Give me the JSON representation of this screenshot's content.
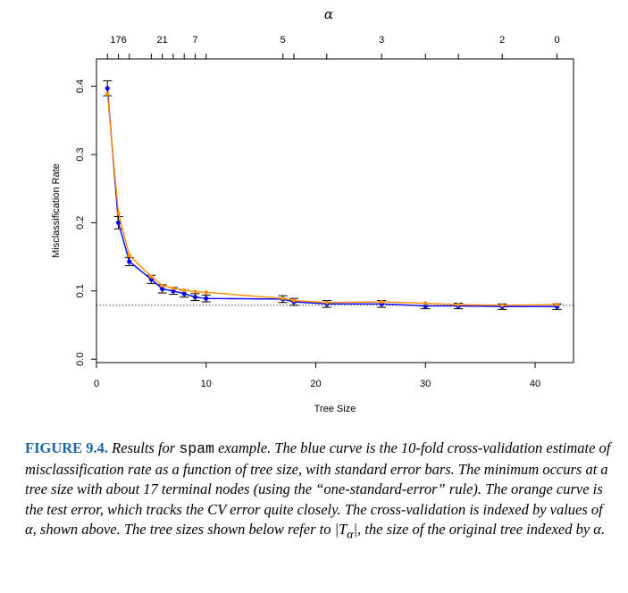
{
  "chart_data": {
    "type": "line",
    "title": "",
    "xlabel": "Tree Size",
    "ylabel": "Misclassification Rate",
    "top_axis_label": "α",
    "xlim": [
      0,
      43.5
    ],
    "ylim": [
      -0.005,
      0.44
    ],
    "x_ticks": [
      0,
      10,
      20,
      30,
      40
    ],
    "y_ticks": [
      0.0,
      0.1,
      0.2,
      0.3,
      0.4
    ],
    "top_ticks_x": [
      1,
      2,
      3,
      5,
      6,
      7,
      8,
      9,
      10,
      17,
      18,
      21,
      26,
      30,
      33,
      37,
      42
    ],
    "top_tick_labels": [
      {
        "x": 2,
        "label": "176"
      },
      {
        "x": 6,
        "label": "21"
      },
      {
        "x": 9,
        "label": "7"
      },
      {
        "x": 17,
        "label": "5"
      },
      {
        "x": 26,
        "label": "3"
      },
      {
        "x": 37,
        "label": "2"
      },
      {
        "x": 42,
        "label": "0"
      }
    ],
    "reference_line": {
      "y": 0.079,
      "style": "dotted"
    },
    "series": [
      {
        "name": "",
        "color": "#0000ff",
        "x": [
          1,
          2,
          3,
          5,
          6,
          7,
          8,
          9,
          10,
          17,
          18,
          21,
          26,
          30,
          33,
          37,
          42
        ],
        "y": [
          0.397,
          0.2,
          0.143,
          0.117,
          0.103,
          0.1,
          0.096,
          0.091,
          0.089,
          0.088,
          0.084,
          0.081,
          0.081,
          0.078,
          0.078,
          0.077,
          0.077
        ],
        "se": [
          0.011,
          0.009,
          0.006,
          0.006,
          0.006,
          0.005,
          0.005,
          0.005,
          0.005,
          0.005,
          0.005,
          0.005,
          0.005,
          0.004,
          0.004,
          0.004,
          0.004
        ]
      },
      {
        "name": "",
        "color": "#ff8c00",
        "x": [
          1,
          2,
          3,
          5,
          6,
          7,
          8,
          9,
          10,
          17,
          18,
          21,
          26,
          30,
          33,
          37,
          42
        ],
        "y": [
          0.389,
          0.214,
          0.152,
          0.121,
          0.108,
          0.104,
          0.101,
          0.099,
          0.098,
          0.089,
          0.086,
          0.083,
          0.084,
          0.082,
          0.08,
          0.079,
          0.08
        ]
      }
    ]
  },
  "caption": {
    "label": "FIGURE 9.4.",
    "part1": " Results for ",
    "code": "spam",
    "part2": " example. The blue curve is the 10-fold cross-validation estimate of misclassification rate as a function of tree size, with standard error bars. The minimum occurs at a tree size with about 17 terminal nodes (using the “one-standard-error” rule). The orange curve is the test error, which tracks the CV error quite closely. The cross-validation is indexed by values of α, shown above. The tree sizes shown below refer to |T",
    "subscript": "α",
    "part3": "|, the size of the original tree indexed by α."
  }
}
